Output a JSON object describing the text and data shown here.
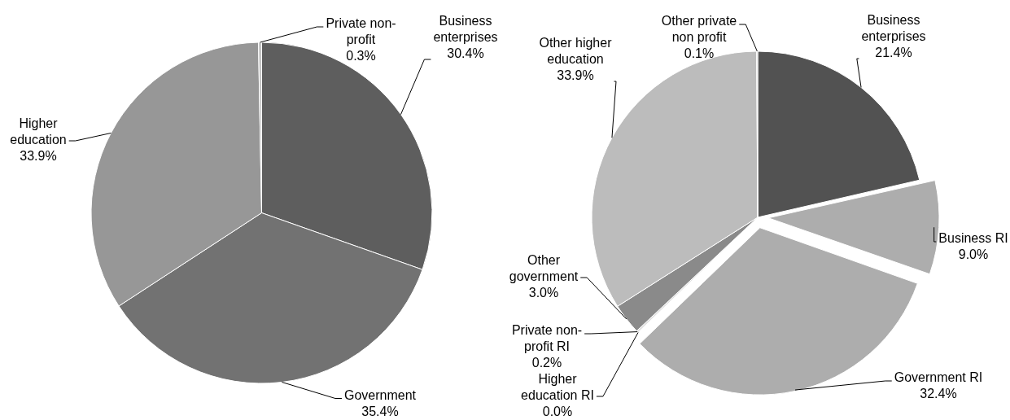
{
  "chart_data": [
    {
      "type": "pie",
      "categories": [
        "Business enterprises",
        "Government",
        "Higher education",
        "Private non-profit"
      ],
      "values": [
        30.4,
        35.4,
        33.9,
        0.3
      ],
      "value_labels": [
        "30.4%",
        "35.4%",
        "33.9%",
        "0.3%"
      ],
      "colors": [
        "#5e5e5e",
        "#727272",
        "#979797",
        "#c4c4c4"
      ]
    },
    {
      "type": "pie",
      "categories": [
        "Business enterprises",
        "Business RI",
        "Government RI",
        "Higher education RI",
        "Private non-profit RI",
        "Other government",
        "Other higher education",
        "Other private non profit"
      ],
      "values": [
        21.4,
        9.0,
        32.4,
        0.0,
        0.2,
        3.0,
        33.9,
        0.1
      ],
      "value_labels": [
        "21.4%",
        "9.0%",
        "32.4%",
        "0.0%",
        "0.2%",
        "3.0%",
        "33.9%",
        "0.1%"
      ],
      "colors": [
        "#525252",
        "#adadad",
        "#adadad",
        "#d9d9d9",
        "#e0e0e0",
        "#8a8a8a",
        "#bcbcbc",
        "#d0d0d0"
      ]
    }
  ]
}
